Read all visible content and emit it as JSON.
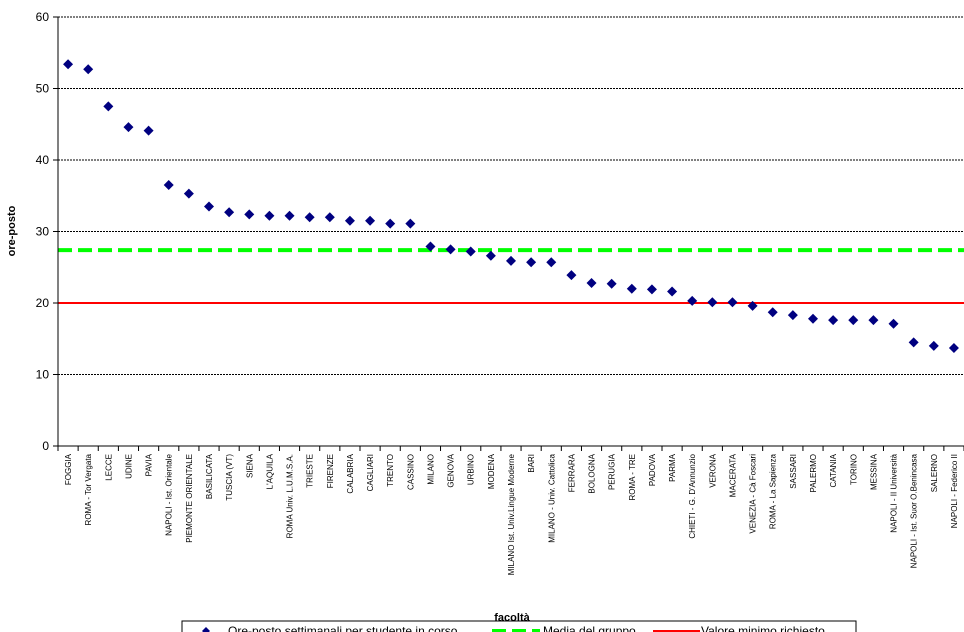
{
  "chart_data": {
    "type": "scatter",
    "xlabel": "facoltà",
    "ylabel": "ore-posto",
    "ylim": [
      0,
      60
    ],
    "yticks": [
      0,
      10,
      20,
      30,
      40,
      50,
      60
    ],
    "grid": true,
    "legend_position": "bottom",
    "categories": [
      "FOGGIA",
      "ROMA - Tor Vergata",
      "LECCE",
      "UDINE",
      "PAVIA",
      "NAPOLI - Ist. Orientale",
      "PIEMONTE ORIENTALE",
      "BASILICATA",
      "TUSCIA (VT)",
      "SIENA",
      "L'AQUILA",
      "ROMA Univ. L.U.M.S.A.",
      "TRIESTE",
      "FIRENZE",
      "CALABRIA",
      "CAGLIARI",
      "TRENTO",
      "CASSINO",
      "MILANO",
      "GENOVA",
      "URBINO",
      "MODENA",
      "MILANO Ist. Univ.Lingue Moderne",
      "BARI",
      "MILANO - Univ. Cattolica",
      "FERRARA",
      "BOLOGNA",
      "PERUGIA",
      "ROMA - TRE",
      "PADOVA",
      "PARMA",
      "CHIETI - G. D'Annunzio",
      "VERONA",
      "MACERATA",
      "VENEZIA - Cà Foscari",
      "ROMA - La Sapienza",
      "SASSARI",
      "PALERMO",
      "CATANIA",
      "TORINO",
      "MESSINA",
      "NAPOLI - II Università",
      "NAPOLI - Ist. Suor O.Benincasa",
      "SALERNO",
      "NAPOLI - Federico II"
    ],
    "series": [
      {
        "name": "Ore-posto settimanali per studente in corso",
        "kind": "markers",
        "color": "#000080",
        "values": [
          53.4,
          52.7,
          47.5,
          44.6,
          44.1,
          36.5,
          35.3,
          33.5,
          32.7,
          32.4,
          32.2,
          32.2,
          32.0,
          32.0,
          31.5,
          31.5,
          31.1,
          31.1,
          27.9,
          27.5,
          27.2,
          26.6,
          25.9,
          25.7,
          25.7,
          23.9,
          22.8,
          22.7,
          22.0,
          21.9,
          21.6,
          20.3,
          20.1,
          20.1,
          19.6,
          18.7,
          18.3,
          17.8,
          17.6,
          17.6,
          17.6,
          17.1,
          14.5,
          14.0,
          13.7
        ]
      },
      {
        "name": "Media del gruppo",
        "kind": "dashed-line",
        "color": "#00ff00",
        "value": 27.4
      },
      {
        "name": "Valore minimo richiesto",
        "kind": "line",
        "color": "#ff0000",
        "value": 20
      }
    ]
  }
}
